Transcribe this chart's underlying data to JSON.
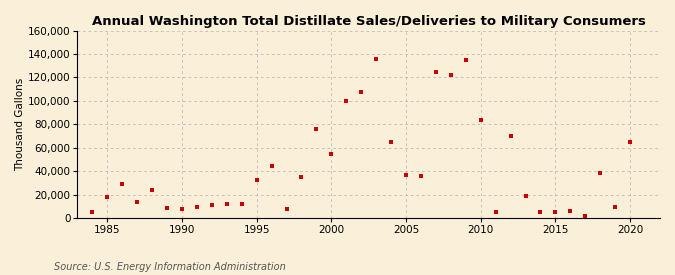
{
  "title": "Annual Washington Total Distillate Sales/Deliveries to Military Consumers",
  "ylabel": "Thousand Gallons",
  "source": "Source: U.S. Energy Information Administration",
  "background_color": "#faefd8",
  "marker_color": "#cc0000",
  "xlim": [
    1983,
    2022
  ],
  "ylim": [
    0,
    160000
  ],
  "yticks": [
    0,
    20000,
    40000,
    60000,
    80000,
    100000,
    120000,
    140000,
    160000
  ],
  "xticks": [
    1985,
    1990,
    1995,
    2000,
    2005,
    2010,
    2015,
    2020
  ],
  "years": [
    1984,
    1985,
    1986,
    1987,
    1988,
    1989,
    1990,
    1991,
    1992,
    1993,
    1994,
    1995,
    1996,
    1997,
    1998,
    1999,
    2000,
    2001,
    2002,
    2003,
    2004,
    2005,
    2006,
    2007,
    2008,
    2009,
    2010,
    2011,
    2012,
    2013,
    2014,
    2015,
    2016,
    2017,
    2018,
    2019,
    2020
  ],
  "values": [
    5000,
    18000,
    29000,
    14000,
    24000,
    9000,
    8000,
    10000,
    11000,
    12000,
    12000,
    33000,
    45000,
    8000,
    35000,
    76000,
    55000,
    100000,
    108000,
    136000,
    65000,
    37000,
    36000,
    125000,
    122000,
    135000,
    84000,
    5000,
    70000,
    19000,
    5000,
    5000,
    6000,
    2000,
    39000,
    10000,
    65000
  ],
  "title_fontsize": 9.5,
  "ylabel_fontsize": 7.5,
  "tick_fontsize": 7.5,
  "source_fontsize": 7
}
